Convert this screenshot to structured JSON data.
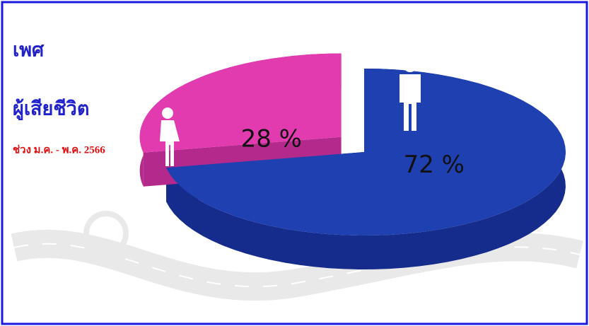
{
  "chart_data": {
    "type": "pie",
    "title": "เพศ",
    "subtitle": "ผู้เสียชีวิต",
    "note": "ช่วง ม.ค. -  พ.ค. 2566",
    "values": [
      72,
      28
    ],
    "value_labels": [
      "72 %",
      "28 %"
    ],
    "colors": [
      "#1f40b0",
      "#e23bb0"
    ],
    "side_colors": [
      "#152c8c",
      "#b32a8c"
    ],
    "explode": [
      0,
      1
    ]
  }
}
